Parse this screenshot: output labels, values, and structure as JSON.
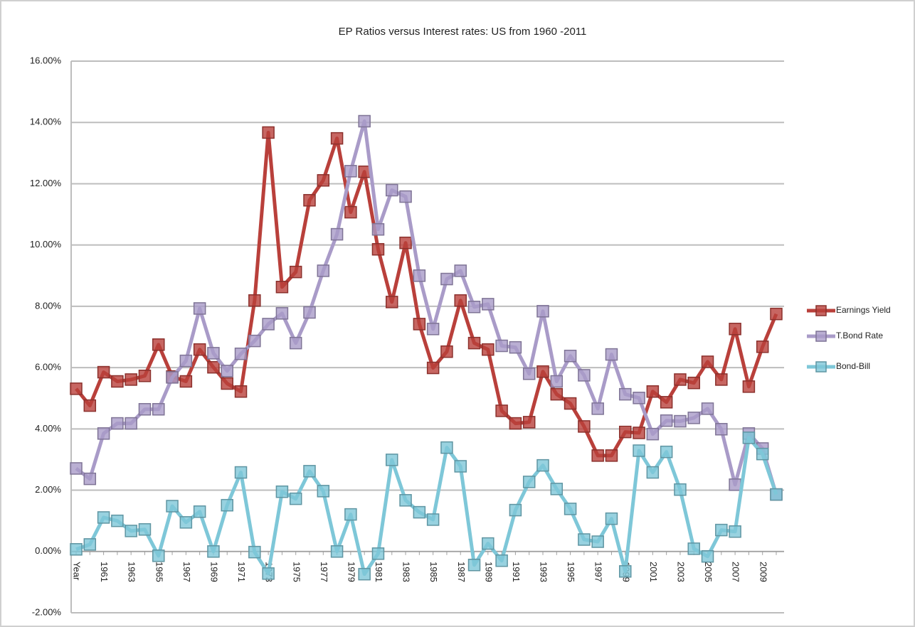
{
  "chart_data": {
    "type": "line",
    "title": "EP Ratios versus Interest rates: US from 1960 -2011",
    "categories": [
      "Year",
      null,
      "1961",
      null,
      "1963",
      null,
      "1965",
      null,
      "1967",
      null,
      "1969",
      null,
      "1971",
      null,
      "1973",
      null,
      "1975",
      null,
      "1977",
      null,
      "1979",
      null,
      "1981",
      null,
      "1983",
      null,
      "1985",
      null,
      "1987",
      null,
      "1989",
      null,
      "1991",
      null,
      "1993",
      null,
      "1995",
      null,
      "1997",
      null,
      "1999",
      null,
      "2001",
      null,
      "2003",
      null,
      "2005",
      null,
      "2007",
      null,
      "2009",
      null
    ],
    "series": [
      {
        "name": "Earnings Yield",
        "color": "#b9403b",
        "values": [
          5.31,
          4.76,
          5.85,
          5.55,
          5.61,
          5.73,
          6.75,
          5.71,
          5.55,
          6.59,
          6.01,
          5.48,
          5.22,
          8.19,
          13.67,
          8.63,
          9.12,
          11.46,
          12.11,
          13.48,
          11.07,
          12.39,
          9.86,
          8.14,
          10.07,
          7.42,
          5.99,
          6.52,
          8.19,
          6.8,
          6.59,
          4.59,
          4.18,
          4.22,
          5.87,
          5.13,
          4.83,
          4.08,
          3.13,
          3.13,
          3.9,
          3.87,
          5.22,
          4.87,
          5.61,
          5.5,
          6.19,
          5.61,
          7.26,
          5.38,
          6.68,
          7.75
        ]
      },
      {
        "name": "T.Bond Rate",
        "color": "#a99bc8",
        "values": [
          2.71,
          2.37,
          3.85,
          4.18,
          4.18,
          4.64,
          4.64,
          5.68,
          6.22,
          7.93,
          6.47,
          5.89,
          6.45,
          6.87,
          7.42,
          7.77,
          6.8,
          7.8,
          9.16,
          10.35,
          12.41,
          14.04,
          10.51,
          11.79,
          11.58,
          9.0,
          7.26,
          8.89,
          9.16,
          7.98,
          8.07,
          6.71,
          6.66,
          5.8,
          7.84,
          5.55,
          6.38,
          5.75,
          4.66,
          6.43,
          5.13,
          5.01,
          3.83,
          4.27,
          4.25,
          4.36,
          4.66,
          3.99,
          2.18,
          3.85,
          3.36,
          1.86
        ]
      },
      {
        "name": "Bond-Bill",
        "color": "#7ec7d8",
        "values": [
          0.07,
          0.23,
          1.11,
          1.0,
          0.67,
          0.72,
          -0.14,
          1.48,
          0.95,
          1.3,
          0.0,
          1.51,
          2.58,
          -0.02,
          -0.72,
          1.95,
          1.72,
          2.62,
          1.97,
          0.0,
          1.21,
          -0.74,
          -0.07,
          2.99,
          1.67,
          1.28,
          1.04,
          3.39,
          2.78,
          -0.44,
          0.26,
          -0.3,
          1.35,
          2.27,
          2.81,
          2.04,
          1.39,
          0.39,
          0.32,
          1.07,
          -0.65,
          3.29,
          2.58,
          3.25,
          2.02,
          0.09,
          -0.16,
          0.7,
          0.65,
          3.71,
          3.18,
          1.86
        ]
      }
    ],
    "ylim": [
      -2,
      16
    ],
    "yticks": [
      {
        "value": -2,
        "label": "-2.00%"
      },
      {
        "value": 0,
        "label": "0.00%"
      },
      {
        "value": 2,
        "label": "2.00%"
      },
      {
        "value": 4,
        "label": "4.00%"
      },
      {
        "value": 6,
        "label": "6.00%"
      },
      {
        "value": 8,
        "label": "8.00%"
      },
      {
        "value": 10,
        "label": "10.00%"
      },
      {
        "value": 12,
        "label": "12.00%"
      },
      {
        "value": 14,
        "label": "14.00%"
      },
      {
        "value": 16,
        "label": "16.00%"
      }
    ],
    "grid": true,
    "legend": "right",
    "markers": "square"
  }
}
